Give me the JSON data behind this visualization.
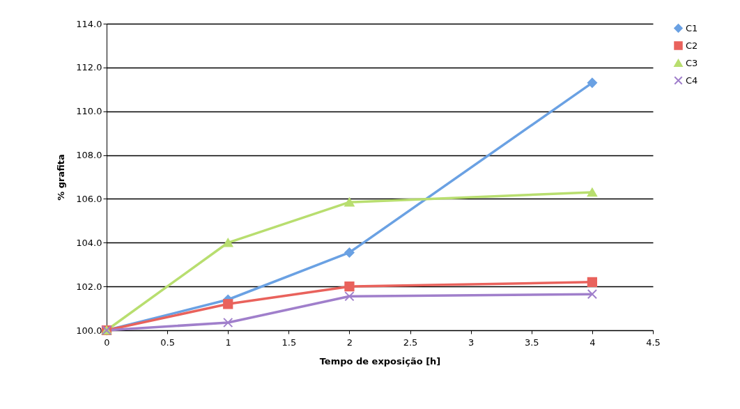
{
  "chart_data": {
    "type": "line",
    "xlabel": "Tempo de exposição [h]",
    "ylabel": "% grafita",
    "x": [
      0,
      1,
      2,
      4
    ],
    "series": [
      {
        "name": "C1",
        "color": "#6aa1e3",
        "marker": "diamond",
        "values": [
          100.0,
          101.4,
          103.55,
          111.3
        ]
      },
      {
        "name": "C2",
        "color": "#e9625c",
        "marker": "square",
        "values": [
          100.0,
          101.2,
          102.0,
          102.2
        ]
      },
      {
        "name": "C3",
        "color": "#b8de6f",
        "marker": "triangle",
        "values": [
          100.0,
          104.0,
          105.85,
          106.3
        ]
      },
      {
        "name": "C4",
        "color": "#a07fcb",
        "marker": "cross",
        "values": [
          100.0,
          100.35,
          101.55,
          101.65
        ]
      }
    ],
    "xlim": [
      0,
      4.5
    ],
    "xticks": [
      0,
      0.5,
      1,
      1.5,
      2,
      2.5,
      3,
      3.5,
      4,
      4.5
    ],
    "ylim": [
      100,
      114
    ],
    "yticks": [
      {
        "value": 100,
        "label": "100.0"
      },
      {
        "value": 102,
        "label": "102.0"
      },
      {
        "value": 104,
        "label": "104.0"
      },
      {
        "value": 106,
        "label": "106.0"
      },
      {
        "value": 108,
        "label": "108.0"
      },
      {
        "value": 110,
        "label": "110.0"
      },
      {
        "value": 112,
        "label": "112.0"
      },
      {
        "value": 114,
        "label": "114.0"
      }
    ],
    "grid": "y",
    "legend": "right",
    "line_style": "solid"
  }
}
